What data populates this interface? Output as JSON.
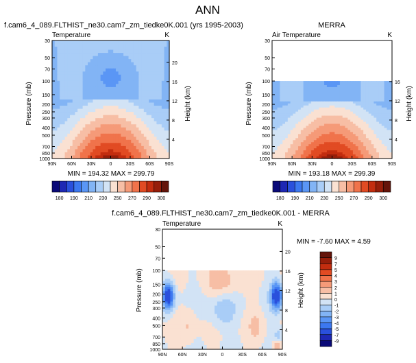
{
  "figure_title": "ANN",
  "chart_data": [
    {
      "id": "model",
      "type": "heatmap",
      "title": "f.cam6_4_089.FLTHIST_ne30.cam7_zm_tiedke0K.001 (yrs 1995-2003)",
      "variable": "Temperature",
      "units": "K",
      "ylabel": "Pressure (mb)",
      "ylabel_right": "Height (km)",
      "x_ticks": [
        "90N",
        "60N",
        "30N",
        "0",
        "30S",
        "60S",
        "90S"
      ],
      "x_range": [
        90,
        -90
      ],
      "p_ticks": [
        30,
        50,
        70,
        100,
        150,
        200,
        250,
        300,
        400,
        500,
        700,
        850,
        1000
      ],
      "p_range": [
        30,
        1000
      ],
      "height_ticks": [
        4,
        8,
        12,
        16,
        20
      ],
      "data_ptop": 30,
      "stats_text": "MIN = 194.32  MAX = 299.79",
      "min": 194.32,
      "max": 299.79,
      "field": "temperature"
    },
    {
      "id": "obs",
      "type": "heatmap",
      "title": "MERRA",
      "variable": "Air Temperature",
      "units": "K",
      "ylabel": "Pressure (mb)",
      "ylabel_right": "Height (km)",
      "x_ticks": [
        "90N",
        "60N",
        "30N",
        "0",
        "30S",
        "60S",
        "90S"
      ],
      "x_range": [
        90,
        -90
      ],
      "p_ticks": [
        30,
        50,
        70,
        100,
        150,
        200,
        250,
        300,
        400,
        500,
        700,
        850,
        1000
      ],
      "p_range": [
        30,
        1000
      ],
      "height_ticks": [
        4,
        8,
        12,
        16
      ],
      "data_ptop": 100,
      "stats_text": "MIN = 193.18  MAX = 299.39",
      "min": 193.18,
      "max": 299.39,
      "field": "temperature"
    },
    {
      "id": "diff",
      "type": "heatmap",
      "title": "f.cam6_4_089.FLTHIST_ne30.cam7_zm_tiedke0K.001 - MERRA",
      "variable": "Temperature",
      "units": "K",
      "ylabel": "Pressure (mb)",
      "ylabel_right": "Height (km)",
      "x_ticks": [
        "90N",
        "60N",
        "30N",
        "0",
        "30S",
        "60S",
        "90S"
      ],
      "x_range": [
        90,
        -90
      ],
      "p_ticks": [
        30,
        50,
        70,
        100,
        150,
        200,
        250,
        300,
        400,
        500,
        700,
        850,
        1000
      ],
      "p_range": [
        30,
        1000
      ],
      "height_ticks": [
        4,
        8,
        12,
        16,
        20
      ],
      "data_ptop": 100,
      "stats_text": "MIN = -7.60  MAX =  4.59",
      "min": -7.6,
      "max": 4.59,
      "field": "difference"
    }
  ],
  "colorbar_temp": {
    "tick_labels": [
      "180",
      "190",
      "210",
      "230",
      "250",
      "270",
      "290",
      "300"
    ],
    "levels": [
      180,
      185,
      190,
      200,
      210,
      220,
      230,
      240,
      250,
      260,
      270,
      280,
      290,
      295,
      300
    ],
    "colors": [
      "#0a0a78",
      "#1e28b4",
      "#2a50dc",
      "#3c78f0",
      "#5a96f5",
      "#82b4f5",
      "#a9cdf7",
      "#d2e3f5",
      "#fae1d2",
      "#f7bea5",
      "#f59a78",
      "#f0734b",
      "#e14b23",
      "#c32d0f",
      "#961e0a",
      "#64140a"
    ]
  },
  "colorbar_diff": {
    "tick_labels": [
      "9",
      "7",
      "5",
      "4",
      "3",
      "2",
      "1",
      "0",
      "-1",
      "-2",
      "-3",
      "-4",
      "-5",
      "-7",
      "-9"
    ],
    "levels": [
      -9,
      -7,
      -5,
      -4,
      -3,
      -2,
      -1,
      0,
      1,
      2,
      3,
      4,
      5,
      7,
      9
    ],
    "colors": [
      "#0a0a78",
      "#1e28b4",
      "#2a50dc",
      "#3c78f0",
      "#5a96f5",
      "#82b4f5",
      "#a9cdf7",
      "#d2e3f5",
      "#fae1d2",
      "#f7bea5",
      "#f59a78",
      "#f0734b",
      "#e14b23",
      "#c32d0f",
      "#961e0a",
      "#64140a"
    ]
  }
}
